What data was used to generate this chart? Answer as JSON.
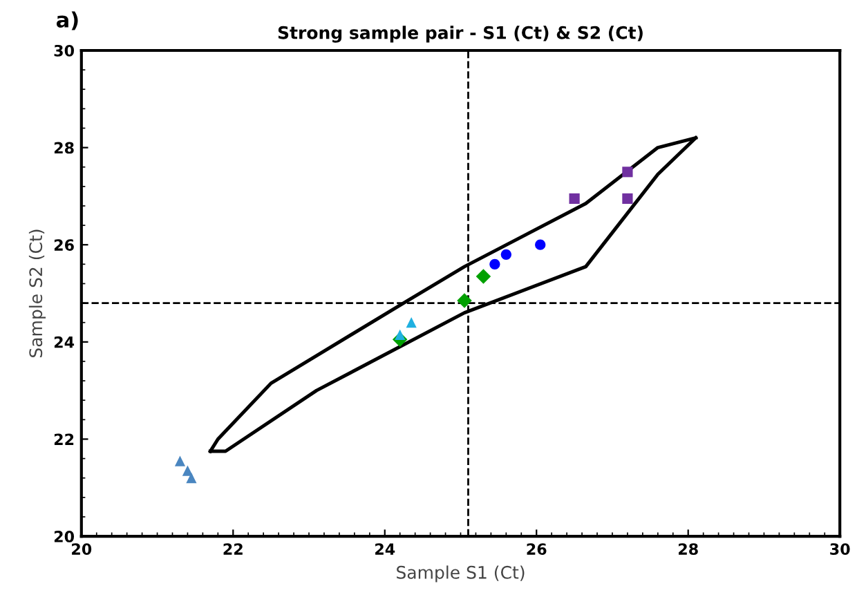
{
  "chart_data": {
    "type": "scatter",
    "title": "Strong sample pair - S1 (Ct) & S2 (Ct)",
    "xlabel": "Sample S1 (Ct)",
    "ylabel": "Sample S2 (Ct)",
    "annotations": [
      "a)"
    ],
    "xlim": [
      20,
      30
    ],
    "ylim": [
      20,
      30
    ],
    "xticks": [
      20,
      22,
      24,
      26,
      28,
      30
    ],
    "yticks": [
      20,
      22,
      24,
      26,
      28,
      30
    ],
    "grid": false,
    "legend": false,
    "series": [
      {
        "color": "#7030a0",
        "marker": "square",
        "x": [
          27.2,
          26.5,
          27.2
        ],
        "values": [
          27.5,
          26.95,
          26.95
        ]
      },
      {
        "color": "#0000ff",
        "marker": "circle",
        "x": [
          26.05,
          25.6,
          25.45
        ],
        "values": [
          26.0,
          25.8,
          25.6
        ]
      },
      {
        "color": "#00a000",
        "marker": "diamond",
        "x": [
          25.3,
          25.05,
          24.2
        ],
        "values": [
          25.35,
          24.85,
          24.05
        ]
      },
      {
        "color": "#1fb0e0",
        "marker": "triangle",
        "x": [
          24.2,
          24.35
        ],
        "values": [
          24.15,
          24.4
        ]
      },
      {
        "color": "#4a86c0",
        "marker": "triangle",
        "x": [
          21.3,
          21.4,
          21.45
        ],
        "values": [
          21.55,
          21.35,
          21.2
        ]
      },
      {
        "type": "line",
        "color": "#000000",
        "marker": "none",
        "line_style": "solid",
        "x": [
          21.7,
          21.8,
          22.5,
          24.3,
          25.05,
          26.65,
          27.6,
          28.1
        ],
        "values": [
          21.75,
          22.0,
          23.15,
          24.85,
          25.55,
          26.85,
          28.0,
          28.2
        ]
      },
      {
        "type": "line",
        "color": "#000000",
        "marker": "none",
        "line_style": "solid",
        "x": [
          21.7,
          21.9,
          23.1,
          25.05,
          26.65,
          27.6,
          28.1
        ],
        "values": [
          21.75,
          21.75,
          23.0,
          24.6,
          25.55,
          27.45,
          28.2
        ]
      }
    ],
    "ref_lines": [
      {
        "axis": "x",
        "value": 25.1,
        "color": "#000000",
        "line_style": "dashed"
      },
      {
        "axis": "y",
        "value": 24.8,
        "color": "#000000",
        "line_style": "dashed"
      }
    ]
  }
}
